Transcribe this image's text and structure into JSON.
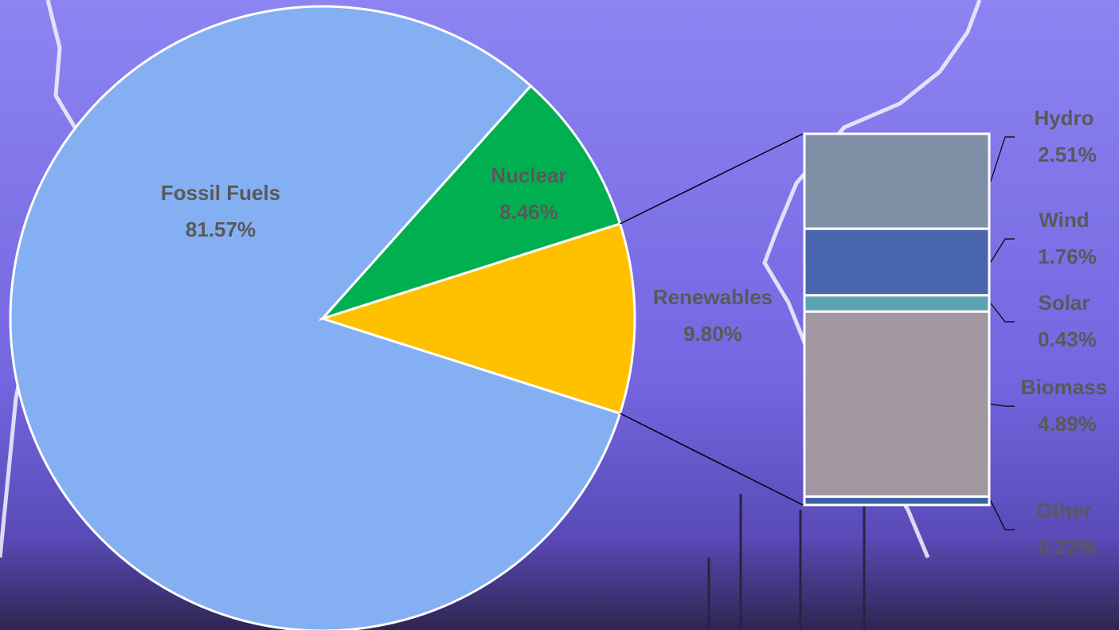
{
  "chart_data": [
    {
      "type": "pie",
      "categories": [
        "Fossil Fuels",
        "Nuclear",
        "Renewables"
      ],
      "values": [
        81.57,
        8.46,
        9.8
      ],
      "value_labels": [
        "81.57%",
        "8.46%",
        "9.80%"
      ],
      "colors": [
        "#84b0f3",
        "#00b050",
        "#ffc000"
      ]
    },
    {
      "type": "bar",
      "categories": [
        "Hydro",
        "Wind",
        "Solar",
        "Biomass",
        "Other"
      ],
      "values": [
        2.51,
        1.76,
        0.43,
        4.89,
        0.22
      ],
      "value_labels": [
        "2.51%",
        "1.76%",
        "0.43%",
        "4.89%",
        "0.22%"
      ],
      "colors": [
        "#7f8fa6",
        "#4865ad",
        "#5ba3b0",
        "#a097a0",
        "#3d5fa6"
      ]
    }
  ]
}
